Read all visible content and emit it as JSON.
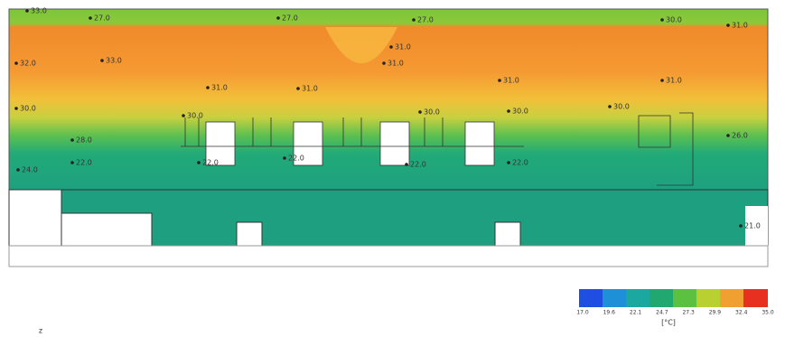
{
  "probes": [
    "33.0",
    "27.0",
    "27.0",
    "27.0",
    "30.0",
    "31.0",
    "31.0",
    "31.0",
    "32.0",
    "33.0",
    "31.0",
    "31.0",
    "31.0",
    "31.0",
    "30.0",
    "30.0",
    "30.0",
    "30.0",
    "30.0",
    "28.0",
    "26.0",
    "22.0",
    "24.0",
    "22.0",
    "22.0",
    "22.0",
    "22.0",
    "21.0"
  ],
  "colorbar": {
    "labels": [
      "17.0",
      "19.6",
      "22.1",
      "24.7",
      "27.3",
      "29.9",
      "32.4",
      "35.0"
    ],
    "unit": "[°C]"
  },
  "axis_label": "z"
}
